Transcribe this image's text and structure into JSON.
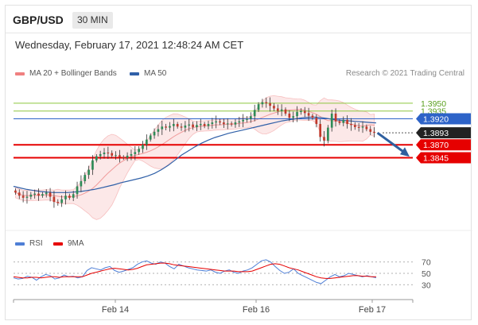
{
  "header": {
    "symbol": "GBP/USD",
    "interval": "30 MIN"
  },
  "datetime": "Wednesday, February 17, 2021 12:48:24 AM CET",
  "credit": "Research © 2021 Trading Central",
  "colors": {
    "bollinger": "#f08080",
    "ma50": "#3060a8",
    "up": "#2e8b57",
    "down": "#c0392b",
    "resistance": "#8dc63f",
    "support": "#e60000",
    "pivot": "#2d63c8",
    "arrow": "#2f5f9e",
    "rsi": "#4f7fd6",
    "ma9": "#e60000"
  },
  "chart_data": [
    {
      "type": "candlestick",
      "legend": [
        "MA 20 + Bollinger Bands",
        "MA 50"
      ],
      "x_ticks": [
        "Feb 14",
        "Feb 16",
        "Feb 17"
      ],
      "levels": [
        {
          "value": 1.395,
          "label": "1.3950",
          "kind": "resistance"
        },
        {
          "value": 1.3935,
          "label": "1.3935",
          "kind": "resistance"
        },
        {
          "value": 1.392,
          "label": "1.3920",
          "kind": "pivot"
        },
        {
          "value": 1.3893,
          "label": "1.3893",
          "kind": "last"
        },
        {
          "value": 1.387,
          "label": "1.3870",
          "kind": "support"
        },
        {
          "value": 1.3845,
          "label": "1.3845",
          "kind": "support"
        }
      ],
      "ylim": [
        1.3725,
        1.3985
      ],
      "last_price": 1.3893,
      "close_series": [
        1.3778,
        1.3772,
        1.3768,
        1.377,
        1.3774,
        1.3776,
        1.3772,
        1.3775,
        1.3778,
        1.377,
        1.376,
        1.3758,
        1.3765,
        1.3772,
        1.3768,
        1.3775,
        1.379,
        1.38,
        1.3812,
        1.3822,
        1.384,
        1.3848,
        1.3852,
        1.3855,
        1.3854,
        1.3849,
        1.385,
        1.3846,
        1.3845,
        1.3849,
        1.3852,
        1.3856,
        1.3862,
        1.387,
        1.388,
        1.3888,
        1.3895,
        1.39,
        1.3905,
        1.3903,
        1.3906,
        1.391,
        1.3905,
        1.3903,
        1.3907,
        1.3909,
        1.3904,
        1.3908,
        1.391,
        1.3906,
        1.391,
        1.3913,
        1.3915,
        1.3913,
        1.391,
        1.3911,
        1.3909,
        1.3913,
        1.3915,
        1.3918,
        1.392,
        1.3925,
        1.3937,
        1.3948,
        1.3952,
        1.395,
        1.3945,
        1.394,
        1.3935,
        1.3938,
        1.393,
        1.3922,
        1.3925,
        1.3933,
        1.3935,
        1.3931,
        1.3926,
        1.3922,
        1.391,
        1.3885,
        1.3878,
        1.3903,
        1.393,
        1.3915,
        1.3912,
        1.3918,
        1.391,
        1.3908,
        1.3904,
        1.3903,
        1.3905,
        1.39,
        1.3895,
        1.3893
      ],
      "ma50_series": [
        1.379,
        1.3787,
        1.3784,
        1.3782,
        1.378,
        1.3779,
        1.3778,
        1.3778,
        1.3778,
        1.3779,
        1.378,
        1.3782,
        1.3784,
        1.3787,
        1.379,
        1.3793,
        1.3797,
        1.38,
        1.3803,
        1.3806,
        1.381,
        1.3815,
        1.3822,
        1.383,
        1.384,
        1.385,
        1.3858,
        1.3866,
        1.3873,
        1.3879,
        1.3884,
        1.3888,
        1.3892,
        1.3895,
        1.3898,
        1.3901,
        1.3904,
        1.3907,
        1.391,
        1.3913,
        1.3916,
        1.3918,
        1.392,
        1.3922,
        1.3923,
        1.3923,
        1.3922,
        1.392,
        1.3918,
        1.3917,
        1.3916,
        1.3915,
        1.3914,
        1.3913,
        1.3912
      ]
    },
    {
      "type": "line",
      "legend": [
        "RSI",
        "9MA"
      ],
      "y_ticks": [
        70,
        50,
        30
      ],
      "ylim": [
        15,
        85
      ],
      "series": [
        {
          "name": "RSI",
          "values": [
            42,
            40,
            41,
            45,
            43,
            38,
            44,
            48,
            46,
            40,
            42,
            47,
            44,
            45,
            42,
            44,
            55,
            60,
            58,
            56,
            60,
            62,
            55,
            52,
            54,
            57,
            60,
            66,
            70,
            72,
            68,
            66,
            70,
            68,
            62,
            58,
            66,
            63,
            60,
            58,
            56,
            55,
            54,
            56,
            52,
            50,
            54,
            56,
            52,
            50,
            54,
            56,
            60,
            66,
            72,
            74,
            70,
            62,
            55,
            50,
            52,
            58,
            50,
            46,
            42,
            38,
            34,
            32,
            38,
            44,
            48,
            44,
            46,
            50,
            48,
            46,
            44,
            46,
            44,
            42
          ]
        },
        {
          "name": "9MA",
          "values": [
            44,
            43,
            42,
            42,
            43,
            43,
            42,
            43,
            44,
            44,
            43,
            44,
            44,
            44,
            44,
            44,
            47,
            50,
            52,
            54,
            56,
            58,
            59,
            58,
            57,
            56,
            57,
            59,
            62,
            65,
            66,
            67,
            68,
            68,
            67,
            65,
            64,
            63,
            62,
            61,
            60,
            59,
            58,
            57,
            56,
            55,
            54,
            54,
            54,
            53,
            53,
            53,
            54,
            57,
            60,
            63,
            66,
            67,
            66,
            63,
            60,
            58,
            56,
            53,
            50,
            47,
            44,
            42,
            41,
            41,
            42,
            43,
            44,
            45,
            46,
            46,
            45,
            45,
            44,
            44
          ]
        }
      ]
    }
  ]
}
